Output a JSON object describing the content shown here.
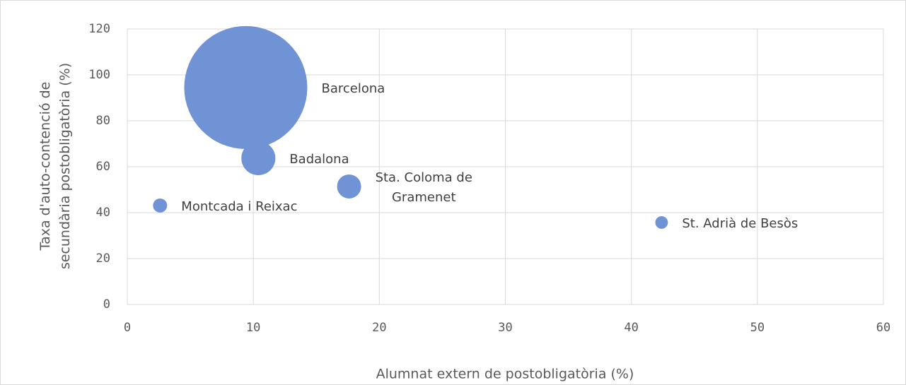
{
  "chart_data": {
    "type": "scatter",
    "x_label": "Alumnat extern de postobligatòria (%)",
    "y_label": "Taxa d'auto-contenció de\nsecundària postobligatòria (%)",
    "labels": [
      "Barcelona",
      "Badalona",
      "Sta. Coloma de\nGramenet",
      "Montcada i Reixac",
      "St. Adrià de Besòs"
    ],
    "x": [
      9.4,
      10.4,
      17.6,
      2.6,
      42.4
    ],
    "values": [
      94.5,
      63.7,
      51.4,
      43.1,
      35.7
    ],
    "sizes": [
      7600,
      580,
      290,
      100,
      80
    ],
    "color": "#6f93d5",
    "xlim": [
      0,
      60
    ],
    "xticks": [
      0,
      10,
      20,
      30,
      40,
      50,
      60
    ],
    "ylim": [
      0,
      120
    ],
    "yticks": [
      0,
      20,
      40,
      60,
      80,
      100,
      120
    ],
    "grid": true
  }
}
